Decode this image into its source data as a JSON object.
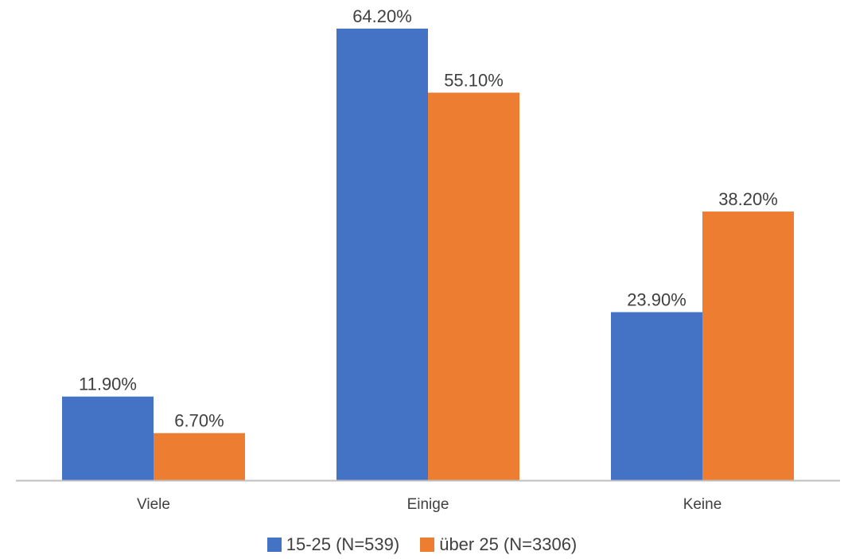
{
  "chart_data": {
    "type": "bar",
    "categories": [
      "Viele",
      "Einige",
      "Keine"
    ],
    "series": [
      {
        "name": "15-25 (N=539)",
        "values": [
          11.9,
          64.2,
          23.9
        ],
        "labels": [
          "11.90%",
          "64.20%",
          "23.90%"
        ],
        "color": "#4472C4"
      },
      {
        "name": "über 25 (N=3306)",
        "values": [
          6.7,
          55.1,
          38.2
        ],
        "labels": [
          "6.70%",
          "55.10%",
          "38.20%"
        ],
        "color": "#ED7D31"
      }
    ],
    "ylim": [
      0,
      70
    ],
    "grid": false,
    "legend_position": "bottom"
  }
}
